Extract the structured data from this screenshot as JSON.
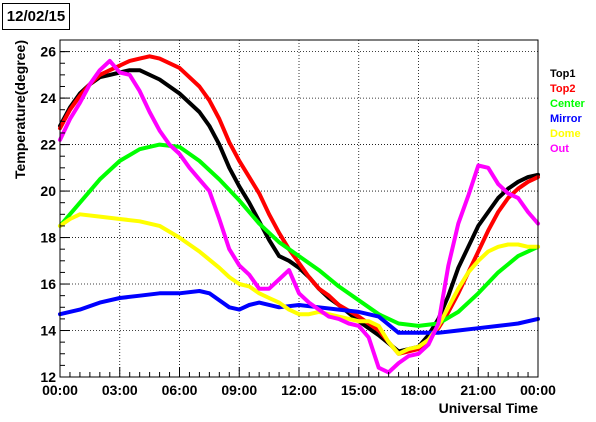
{
  "chart_data": {
    "type": "line",
    "title": "12/02/15",
    "xlabel": "Universal Time",
    "ylabel": "Temperature(degree)",
    "xlim": [
      0,
      24
    ],
    "ylim": [
      12,
      26.5
    ],
    "x_ticks": [
      "00:00",
      "03:00",
      "06:00",
      "09:00",
      "12:00",
      "15:00",
      "18:00",
      "21:00",
      "00:00"
    ],
    "y_ticks": [
      "12",
      "14",
      "16",
      "18",
      "20",
      "22",
      "24",
      "26"
    ],
    "grid": true,
    "legend_position": "right",
    "series": [
      {
        "name": "Top1",
        "color": "#000000",
        "x": [
          0,
          0.5,
          1,
          1.5,
          2,
          2.5,
          3,
          3.5,
          4,
          5,
          6,
          7,
          7.5,
          8,
          8.5,
          9,
          9.5,
          10,
          10.5,
          11,
          11.5,
          12,
          12.5,
          13,
          13.5,
          14,
          15,
          16,
          17,
          18,
          18.5,
          19,
          19.5,
          20,
          20.5,
          21,
          21.5,
          22,
          22.5,
          23,
          23.5,
          24
        ],
        "y": [
          22.8,
          23.6,
          24.2,
          24.6,
          24.9,
          25.0,
          25.1,
          25.2,
          25.2,
          24.8,
          24.2,
          23.4,
          22.8,
          22.0,
          21.0,
          20.2,
          19.5,
          18.7,
          17.9,
          17.2,
          17.0,
          16.7,
          16.3,
          15.8,
          15.4,
          15.1,
          14.4,
          13.8,
          13.1,
          13.3,
          13.8,
          14.5,
          15.5,
          16.7,
          17.6,
          18.5,
          19.1,
          19.7,
          20.1,
          20.4,
          20.6,
          20.7
        ]
      },
      {
        "name": "Top2",
        "color": "#ff0000",
        "x": [
          0,
          0.5,
          1,
          1.5,
          2,
          2.5,
          3,
          3.5,
          4,
          4.5,
          5,
          6,
          7,
          7.5,
          8,
          8.5,
          9,
          9.5,
          10,
          10.5,
          11,
          11.5,
          12,
          12.5,
          13,
          13.5,
          14,
          15,
          16,
          17,
          18,
          18.5,
          19,
          19.5,
          20,
          20.5,
          21,
          21.5,
          22,
          22.5,
          23,
          23.5,
          24
        ],
        "y": [
          22.7,
          23.5,
          24.1,
          24.6,
          25.0,
          25.2,
          25.4,
          25.6,
          25.7,
          25.8,
          25.7,
          25.3,
          24.5,
          23.9,
          23.1,
          22.1,
          21.3,
          20.6,
          19.9,
          19.0,
          18.2,
          17.5,
          16.9,
          16.3,
          15.8,
          15.5,
          15.1,
          14.6,
          14.0,
          13.0,
          13.2,
          13.6,
          14.1,
          14.8,
          15.6,
          16.5,
          17.4,
          18.3,
          19.1,
          19.7,
          20.1,
          20.4,
          20.6
        ]
      },
      {
        "name": "Center",
        "color": "#00ff00",
        "x": [
          0,
          1,
          2,
          3,
          4,
          5,
          6,
          7,
          8,
          9,
          10,
          11,
          12,
          13,
          14,
          15,
          16,
          17,
          18,
          19,
          20,
          21,
          22,
          23,
          24
        ],
        "y": [
          18.5,
          19.5,
          20.5,
          21.3,
          21.8,
          22.0,
          21.9,
          21.3,
          20.5,
          19.6,
          18.6,
          17.8,
          17.2,
          16.6,
          15.9,
          15.3,
          14.7,
          14.3,
          14.2,
          14.3,
          14.8,
          15.6,
          16.5,
          17.2,
          17.6
        ]
      },
      {
        "name": "Mirror",
        "color": "#0000ff",
        "x": [
          0,
          1,
          2,
          3,
          4,
          5,
          6,
          7,
          7.5,
          8,
          8.5,
          9,
          9.5,
          10,
          11,
          12,
          13,
          14,
          15,
          16,
          17,
          18,
          19,
          20,
          21,
          22,
          23,
          24
        ],
        "y": [
          14.7,
          14.9,
          15.2,
          15.4,
          15.5,
          15.6,
          15.6,
          15.7,
          15.6,
          15.3,
          15.0,
          14.9,
          15.1,
          15.2,
          15.0,
          15.1,
          15.0,
          14.9,
          14.8,
          14.6,
          13.9,
          13.9,
          13.9,
          14.0,
          14.1,
          14.2,
          14.3,
          14.5
        ]
      },
      {
        "name": "Dome",
        "color": "#ffff00",
        "x": [
          0,
          0.5,
          1,
          2,
          3,
          4,
          5,
          6,
          7,
          8,
          8.5,
          9,
          9.5,
          10,
          10.5,
          11,
          11.5,
          12,
          12.5,
          13,
          14,
          15,
          15.5,
          16,
          16.5,
          17,
          17.5,
          18,
          18.5,
          19,
          19.5,
          20,
          20.5,
          21,
          21.5,
          22,
          22.5,
          23,
          23.5,
          24
        ],
        "y": [
          18.5,
          18.8,
          19.0,
          18.9,
          18.8,
          18.7,
          18.5,
          18.0,
          17.4,
          16.7,
          16.3,
          16.0,
          15.9,
          15.6,
          15.4,
          15.2,
          14.9,
          14.7,
          14.7,
          14.8,
          14.6,
          14.4,
          14.4,
          14.2,
          13.5,
          13.0,
          13.2,
          13.3,
          13.6,
          14.2,
          15.0,
          15.8,
          16.5,
          17.0,
          17.4,
          17.6,
          17.7,
          17.7,
          17.6,
          17.6
        ]
      },
      {
        "name": "Out",
        "color": "#ff00ff",
        "x": [
          0,
          0.5,
          1,
          1.5,
          2,
          2.5,
          3,
          3.5,
          4,
          4.5,
          5,
          5.5,
          6,
          6.5,
          7,
          7.5,
          8,
          8.5,
          9,
          9.5,
          10,
          10.5,
          11,
          11.5,
          12,
          12.5,
          13,
          13.5,
          14,
          14.5,
          15,
          15.5,
          16,
          16.5,
          17,
          17.5,
          18,
          18.5,
          19,
          19.5,
          20,
          20.5,
          21,
          21.5,
          22,
          22.5,
          23,
          23.5,
          24
        ],
        "y": [
          22.2,
          23.1,
          23.8,
          24.6,
          25.2,
          25.6,
          25.1,
          25.0,
          24.3,
          23.4,
          22.6,
          22.0,
          21.6,
          21.0,
          20.5,
          20.0,
          18.8,
          17.5,
          16.8,
          16.4,
          15.8,
          15.8,
          16.2,
          16.6,
          15.6,
          15.2,
          14.9,
          14.6,
          14.5,
          14.3,
          14.2,
          13.7,
          12.4,
          12.2,
          12.6,
          12.9,
          13.0,
          13.4,
          14.3,
          16.8,
          18.6,
          19.8,
          21.1,
          21.0,
          20.3,
          19.9,
          19.7,
          19.1,
          18.6
        ]
      }
    ]
  }
}
